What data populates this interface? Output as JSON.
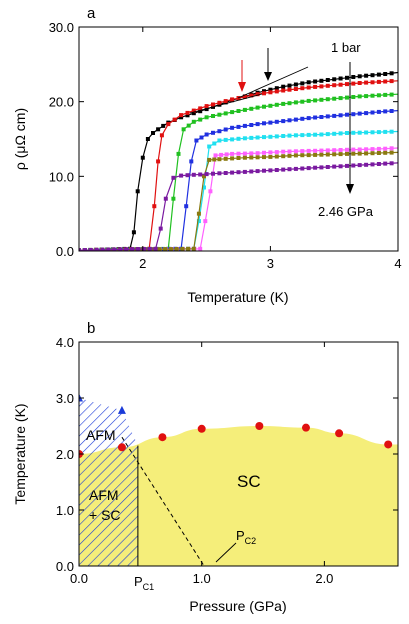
{
  "chart_data": [
    {
      "panel_label": "a",
      "type": "line",
      "xlabel": "Temperature (K)",
      "ylabel": "ρ (μΩ cm)",
      "xlim": [
        1.5,
        4.0
      ],
      "ylim": [
        0.0,
        30.0
      ],
      "xticks": [
        "2",
        "3",
        "4"
      ],
      "xtick_values": [
        2,
        3,
        4
      ],
      "yticks": [
        "0.0",
        "10.0",
        "20.0",
        "30.0"
      ],
      "ytick_values": [
        0,
        10,
        20,
        30
      ],
      "grid": false,
      "legend": "none",
      "annotations": {
        "top_label": "1 bar",
        "bottom_label": "2.46 GPa"
      },
      "series": [
        {
          "color": "#000000",
          "x": [
            1.5,
            1.9,
            1.93,
            1.96,
            2.0,
            2.04,
            2.08,
            2.12,
            2.2,
            2.3,
            2.5,
            2.7,
            2.9,
            3.1,
            3.3,
            3.5,
            3.7,
            3.9,
            4.0
          ],
          "values": [
            0.1,
            0.3,
            2.5,
            8,
            12.5,
            15,
            15.8,
            16.3,
            17.2,
            17.9,
            19.0,
            20.2,
            21.2,
            22.0,
            22.6,
            23.0,
            23.4,
            23.7,
            23.9
          ]
        },
        {
          "color": "#e01010",
          "x": [
            1.5,
            2.05,
            2.09,
            2.12,
            2.15,
            2.2,
            2.3,
            2.5,
            2.7,
            2.9,
            3.1,
            3.3,
            3.5,
            3.7,
            3.9,
            4.0
          ],
          "values": [
            0.1,
            0.3,
            6,
            12,
            15.5,
            17.0,
            18.2,
            19.4,
            20.3,
            21.0,
            21.5,
            21.9,
            22.2,
            22.5,
            22.7,
            22.8
          ]
        },
        {
          "color": "#20c020",
          "x": [
            1.5,
            2.2,
            2.24,
            2.28,
            2.32,
            2.4,
            2.5,
            2.7,
            2.9,
            3.1,
            3.3,
            3.5,
            3.7,
            3.9,
            4.0
          ],
          "values": [
            0.1,
            0.3,
            7,
            13,
            16.3,
            17.3,
            17.9,
            18.6,
            19.2,
            19.7,
            20.1,
            20.4,
            20.7,
            20.9,
            21.0
          ]
        },
        {
          "color": "#2030e0",
          "x": [
            1.5,
            2.3,
            2.34,
            2.38,
            2.42,
            2.5,
            2.7,
            2.9,
            3.1,
            3.3,
            3.5,
            3.7,
            3.9,
            4.0
          ],
          "values": [
            0.1,
            0.3,
            6,
            12,
            14.8,
            15.6,
            16.5,
            17.0,
            17.4,
            17.8,
            18.1,
            18.4,
            18.7,
            18.8
          ]
        },
        {
          "color": "#20e0f0",
          "x": [
            1.5,
            2.4,
            2.44,
            2.48,
            2.52,
            2.6,
            2.8,
            3.0,
            3.2,
            3.4,
            3.6,
            3.8,
            4.0
          ],
          "values": [
            0.1,
            0.3,
            4,
            8.5,
            14.0,
            14.8,
            15.1,
            15.3,
            15.5,
            15.6,
            15.8,
            15.9,
            16.0
          ]
        },
        {
          "color": "#ff60ff",
          "x": [
            1.5,
            2.45,
            2.49,
            2.53,
            2.57,
            2.7,
            2.9,
            3.1,
            3.3,
            3.5,
            3.7,
            3.9,
            4.0
          ],
          "values": [
            0.1,
            0.3,
            4,
            8,
            12.8,
            13.0,
            13.1,
            13.3,
            13.4,
            13.5,
            13.6,
            13.7,
            13.8
          ]
        },
        {
          "color": "#8a7a10",
          "x": [
            1.5,
            2.4,
            2.44,
            2.48,
            2.52,
            2.6,
            2.8,
            3.0,
            3.2,
            3.4,
            3.6,
            3.8,
            4.0
          ],
          "values": [
            0.1,
            0.3,
            5,
            10,
            12.2,
            12.3,
            12.5,
            12.6,
            12.8,
            12.9,
            13.0,
            13.1,
            13.2
          ]
        },
        {
          "color": "#7a1aa0",
          "x": [
            1.5,
            2.1,
            2.14,
            2.18,
            2.24,
            2.3,
            2.4,
            2.6,
            2.8,
            3.0,
            3.2,
            3.4,
            3.6,
            3.8,
            4.0
          ],
          "values": [
            0.1,
            0.3,
            3,
            7,
            9.8,
            10.1,
            10.2,
            10.4,
            10.6,
            10.8,
            11.0,
            11.2,
            11.4,
            11.6,
            11.8
          ]
        }
      ]
    },
    {
      "panel_label": "b",
      "type": "scatter",
      "xlabel": "Pressure (GPa)",
      "ylabel": "Temperature (K)",
      "xlim": [
        0.0,
        2.6
      ],
      "ylim": [
        0.0,
        4.0
      ],
      "xticks": [
        "0.0",
        "1.0",
        "2.0"
      ],
      "xtick_values": [
        0,
        1,
        2
      ],
      "yticks": [
        "0.0",
        "1.0",
        "2.0",
        "3.0",
        "4.0"
      ],
      "ytick_values": [
        0,
        1,
        2,
        3,
        4
      ],
      "grid": false,
      "legend": "none",
      "pc1": {
        "label": "P",
        "sub": "C1",
        "x": 0.48
      },
      "pc2": {
        "label": "P",
        "sub": "C2",
        "x": 1.02
      },
      "region_labels": {
        "afm": "AFM",
        "afm_sc_line1": "AFM",
        "afm_sc_line2": "+ SC",
        "sc": "SC"
      },
      "tn_points": {
        "color": "#1a3ad8",
        "x": [
          0.0,
          0.35
        ],
        "values": [
          3.0,
          2.78
        ]
      },
      "tc_points": {
        "color": "#e01010",
        "x": [
          0.0,
          0.35,
          0.68,
          1.0,
          1.47,
          1.85,
          2.12,
          2.52
        ],
        "values": [
          2.0,
          2.12,
          2.3,
          2.45,
          2.5,
          2.47,
          2.37,
          2.17
        ]
      },
      "sc_color": "#f5ee7a",
      "afm_hatch_color": "#1a3ad8"
    }
  ]
}
